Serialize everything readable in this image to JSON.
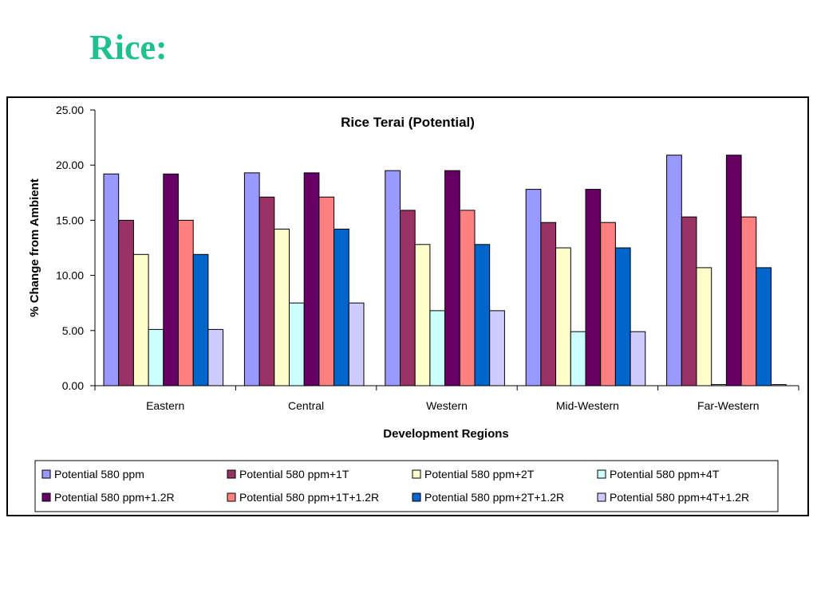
{
  "slide": {
    "title": "Rice:"
  },
  "chart_data": {
    "type": "bar",
    "title": "Rice Terai (Potential)",
    "xlabel": "Development Regions",
    "ylabel": "% Change from Ambient",
    "ylim": [
      0,
      25
    ],
    "yticks": [
      "0.00",
      "5.00",
      "10.00",
      "15.00",
      "20.00",
      "25.00"
    ],
    "categories": [
      "Eastern",
      "Central",
      "Western",
      "Mid-Western",
      "Far-Western"
    ],
    "legend_position": "bottom",
    "grid": false,
    "series": [
      {
        "name": "Potential 580 ppm",
        "color": "#9999ff",
        "values": [
          19.2,
          19.3,
          19.5,
          17.8,
          20.9
        ]
      },
      {
        "name": "Potential 580 ppm+1T",
        "color": "#993366",
        "values": [
          15.0,
          17.1,
          15.9,
          14.8,
          15.3
        ]
      },
      {
        "name": "Potential 580 ppm+2T",
        "color": "#ffffcc",
        "values": [
          11.9,
          14.2,
          12.8,
          12.5,
          10.7
        ]
      },
      {
        "name": "Potential 580 ppm+4T",
        "color": "#ccffff",
        "values": [
          5.1,
          7.5,
          6.8,
          4.9,
          0.1
        ]
      },
      {
        "name": "Potential 580 ppm+1.2R",
        "color": "#660066",
        "values": [
          19.2,
          19.3,
          19.5,
          17.8,
          20.9
        ]
      },
      {
        "name": "Potential 580 ppm+1T+1.2R",
        "color": "#ff8080",
        "values": [
          15.0,
          17.1,
          15.9,
          14.8,
          15.3
        ]
      },
      {
        "name": "Potential 580 ppm+2T+1.2R",
        "color": "#0066cc",
        "values": [
          11.9,
          14.2,
          12.8,
          12.5,
          10.7
        ]
      },
      {
        "name": "Potential 580 ppm+4T+1.2R",
        "color": "#ccccff",
        "values": [
          5.1,
          7.5,
          6.8,
          4.9,
          0.1
        ]
      }
    ]
  }
}
